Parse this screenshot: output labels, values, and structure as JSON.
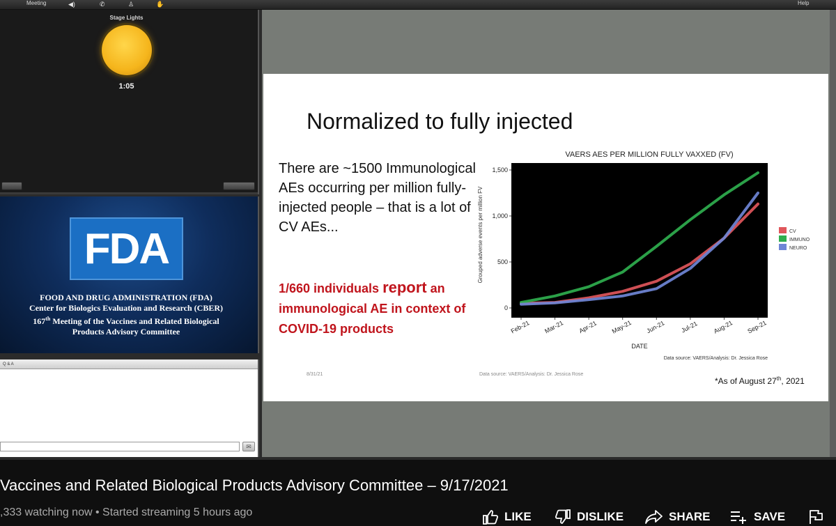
{
  "toolbar": {
    "left_label": "",
    "meeting_label": "Meeting",
    "help_label": "Help"
  },
  "stage_lights": {
    "title": "Stage Lights",
    "timer": "1:05",
    "light_color": "#f5b51c"
  },
  "fda_pod": {
    "logo_text": "FDA",
    "line1": "FOOD AND DRUG ADMINISTRATION (FDA)",
    "line2": "Center for Biologics Evaluation and Research (CBER)",
    "line3_num": "167",
    "line3_sup": "th",
    "line3_rest": " Meeting of the Vaccines and Related Biological",
    "line4": "Products Advisory Committee"
  },
  "qa": {
    "header": "Q & A"
  },
  "slide": {
    "title": "Normalized to fully injected",
    "body": "There are ~1500 Immunological AEs occurring per million fully-injected people – that is a lot of CV AEs...",
    "highlight_a": "1/660 individuals ",
    "highlight_b": "report",
    "highlight_c": " an immunological AE in context of COVID-19 products",
    "date": "8/31/21",
    "source_bottom": "Data source: VAERS/Analysis: Dr. Jessica Rose",
    "asof_prefix": "*As of August 27",
    "asof_sup": "th",
    "asof_suffix": ", 2021"
  },
  "chart_data": {
    "type": "line",
    "title": "VAERS AES PER MILLION FULLY VAXXED (FV)",
    "xlabel": "DATE",
    "ylabel": "Grouped adverse events per million FV",
    "source": "Data source: VAERS/Analysis: Dr. Jessica Rose",
    "x": [
      "Feb-21",
      "Mar-21",
      "Apr-21",
      "May-21",
      "Jun-21",
      "Jul-21",
      "Aug-21",
      "Sep-21"
    ],
    "ylim": [
      0,
      1500
    ],
    "yticks": [
      0,
      500,
      1000,
      1500
    ],
    "ytick_labels": [
      "0",
      "500",
      "1,000",
      "1,500"
    ],
    "legend_placement": "right",
    "series": [
      {
        "name": "CV",
        "color": "#e0565b",
        "values": [
          50,
          60,
          110,
          180,
          290,
          480,
          760,
          1130
        ]
      },
      {
        "name": "IMMUNO",
        "color": "#2fae4e",
        "values": [
          60,
          130,
          230,
          390,
          670,
          960,
          1230,
          1470
        ]
      },
      {
        "name": "NEURO",
        "color": "#6f86d6",
        "values": [
          40,
          55,
          90,
          130,
          210,
          430,
          760,
          1250
        ]
      }
    ]
  },
  "video": {
    "title": "Vaccines and Related Biological Products Advisory Committee – 9/17/2021",
    "meta": ",333 watching now • Started streaming 5 hours ago",
    "like": "LIKE",
    "dislike": "DISLIKE",
    "share": "SHARE",
    "save": "SAVE"
  }
}
